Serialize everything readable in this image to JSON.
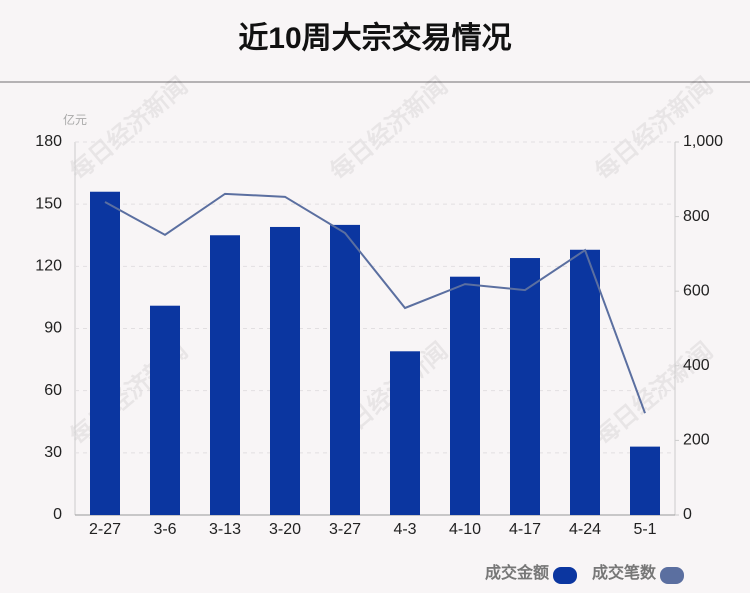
{
  "chart_data": {
    "type": "bar-line",
    "title": "近10周大宗交易情况",
    "y_unit": "亿元",
    "watermark": "每日经济新闻",
    "categories": [
      "2-27",
      "3-6",
      "3-13",
      "3-20",
      "3-27",
      "4-3",
      "4-10",
      "4-17",
      "4-24",
      "5-1"
    ],
    "series": [
      {
        "name": "成交金额",
        "type": "bar",
        "color": "#0b36a0",
        "values": [
          156,
          101,
          135,
          139,
          140,
          79,
          115,
          124,
          128,
          33
        ]
      },
      {
        "name": "成交笔数",
        "type": "line",
        "axis": "y2",
        "color": "#5b6fa0",
        "values": [
          839,
          751,
          861,
          853,
          756,
          555,
          619,
          603,
          710,
          273
        ]
      }
    ],
    "ylim": [
      0,
      180
    ],
    "yticks": [
      0,
      30,
      60,
      90,
      120,
      150,
      180
    ],
    "y2lim": [
      0,
      1000
    ],
    "y2ticks": [
      0,
      200,
      400,
      600,
      800,
      {
        "value": 1000,
        "label": "1,000"
      }
    ],
    "grid": true
  }
}
